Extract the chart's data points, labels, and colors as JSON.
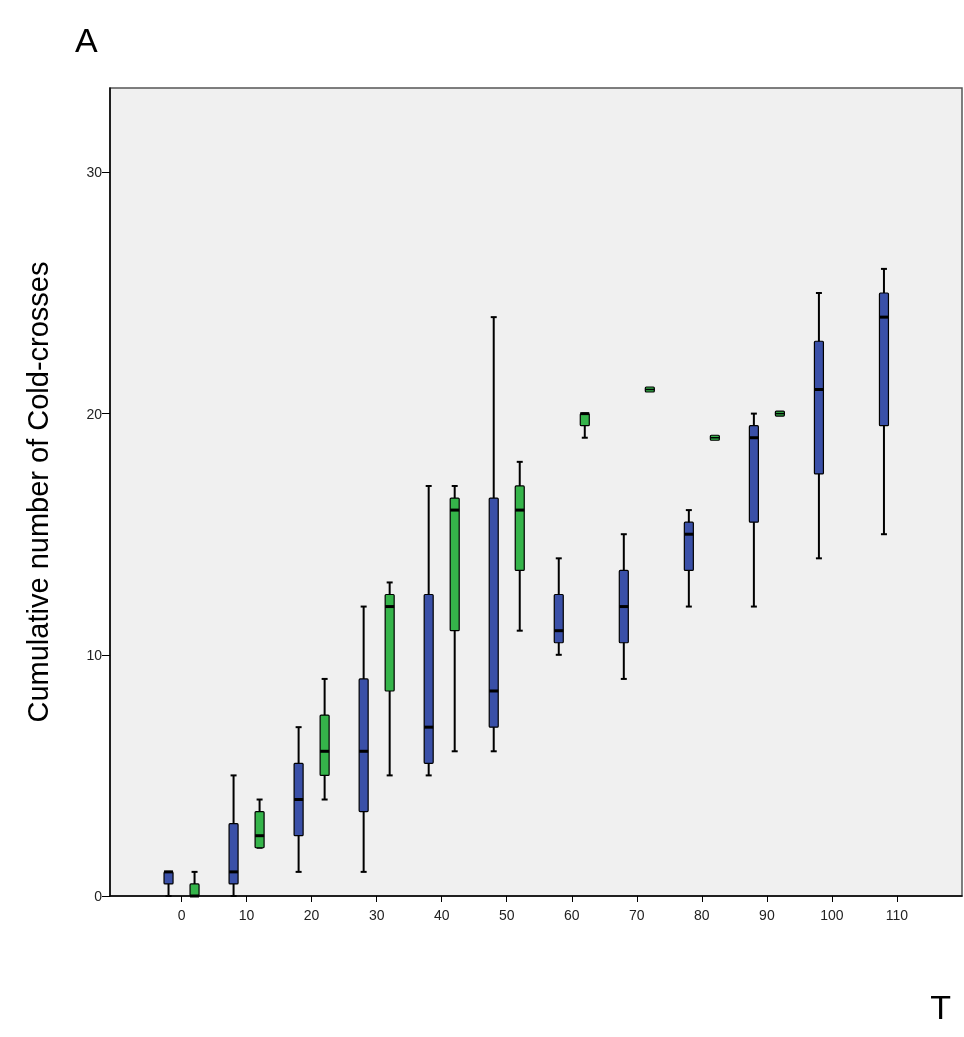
{
  "chart_data": {
    "type": "box",
    "title": "A",
    "xlabel": "T",
    "ylabel": "Cumulative number of Cold-crosses",
    "xlim": [
      -11,
      120
    ],
    "xticks": [
      0,
      10,
      20,
      30,
      40,
      50,
      60,
      70,
      80,
      90,
      100,
      110
    ],
    "ylim": [
      0,
      33.5
    ],
    "yticks": [
      0,
      10,
      20,
      30
    ],
    "series": [
      {
        "color": "#3a50a8",
        "x": [
          -2,
          8,
          18,
          28,
          38,
          48,
          58,
          68,
          78,
          88,
          98,
          108
        ],
        "boxes": [
          {
            "low": 0,
            "q1": 0.5,
            "median": 1,
            "q3": 1,
            "high": 1
          },
          {
            "low": 0,
            "q1": 0.5,
            "median": 1,
            "q3": 3,
            "high": 5
          },
          {
            "low": 1,
            "q1": 2.5,
            "median": 4,
            "q3": 5.5,
            "high": 7
          },
          {
            "low": 1,
            "q1": 3.5,
            "median": 6,
            "q3": 9,
            "high": 12
          },
          {
            "low": 5,
            "q1": 5.5,
            "median": 7,
            "q3": 12.5,
            "high": 17
          },
          {
            "low": 6,
            "q1": 7,
            "median": 8.5,
            "q3": 16.5,
            "high": 24
          },
          {
            "low": 10,
            "q1": 10.5,
            "median": 11,
            "q3": 12.5,
            "high": 14
          },
          {
            "low": 9,
            "q1": 10.5,
            "median": 12,
            "q3": 13.5,
            "high": 15
          },
          {
            "low": 12,
            "q1": 13.5,
            "median": 15,
            "q3": 15.5,
            "high": 16
          },
          {
            "low": 12,
            "q1": 15.5,
            "median": 19,
            "q3": 19.5,
            "high": 20
          },
          {
            "low": 14,
            "q1": 17.5,
            "median": 21,
            "q3": 23,
            "high": 25
          },
          {
            "low": 15,
            "q1": 19.5,
            "median": 24,
            "q3": 25,
            "high": 26
          }
        ]
      },
      {
        "color": "#35b44a",
        "x": [
          2,
          12,
          22,
          32,
          42,
          52,
          62,
          72,
          82,
          92
        ],
        "boxes": [
          {
            "low": 0,
            "q1": 0,
            "median": 0,
            "q3": 0.5,
            "high": 1
          },
          {
            "low": 2,
            "q1": 2,
            "median": 2.5,
            "q3": 3.5,
            "high": 4
          },
          {
            "low": 4,
            "q1": 5,
            "median": 6,
            "q3": 7.5,
            "high": 9
          },
          {
            "low": 5,
            "q1": 8.5,
            "median": 12,
            "q3": 12.5,
            "high": 13
          },
          {
            "low": 6,
            "q1": 11,
            "median": 16,
            "q3": 16.5,
            "high": 17
          },
          {
            "low": 11,
            "q1": 13.5,
            "median": 16,
            "q3": 17,
            "high": 18
          },
          {
            "low": 19,
            "q1": 19.5,
            "median": 20,
            "q3": 20,
            "high": 20
          },
          {
            "low": 21,
            "q1": 21,
            "median": 21,
            "q3": 21,
            "high": 21
          },
          {
            "low": 19,
            "q1": 19,
            "median": 19,
            "q3": 19,
            "high": 19
          },
          {
            "low": 20,
            "q1": 20,
            "median": 20,
            "q3": 20,
            "high": 20
          }
        ]
      }
    ]
  }
}
